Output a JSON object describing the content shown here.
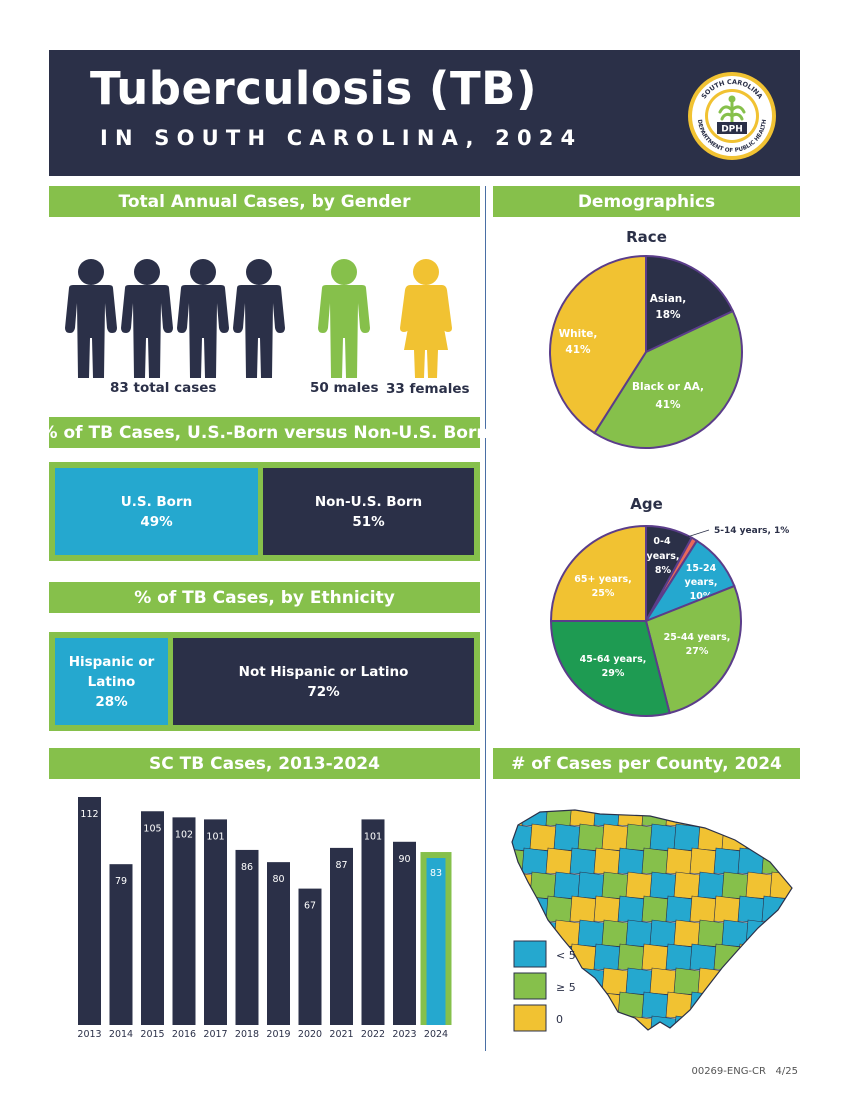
{
  "header": {
    "title": "Tuberculosis (TB)",
    "subtitle": "IN SOUTH CAROLINA, 2024",
    "seal_top_text": "SOUTH CAROLINA",
    "seal_bottom_text": "DEPARTMENT OF PUBLIC HEALTH",
    "seal_center_text": "DPH"
  },
  "colors": {
    "navy": "#2b3048",
    "green": "#86c04b",
    "yellow": "#f1c232",
    "blue": "#25a8cf",
    "teal_green": "#1e9b52",
    "salmon": "#e8685a"
  },
  "gender": {
    "heading": "Total Annual Cases, by Gender",
    "total_label": "83 total cases",
    "males_label": "50 males",
    "females_label": "33 females"
  },
  "birth": {
    "heading": "% of TB Cases, U.S.-Born versus Non-U.S. Born",
    "us_label": "U.S. Born",
    "us_value": "49%",
    "non_label": "Non-U.S. Born",
    "non_value": "51%"
  },
  "ethnicity": {
    "heading": "% of TB Cases, by Ethnicity",
    "hisp_label_1": "Hispanic or",
    "hisp_label_2": "Latino",
    "hisp_value": "28%",
    "non_label": "Not Hispanic or Latino",
    "non_value": "72%"
  },
  "demographics": {
    "heading": "Demographics",
    "race_heading": "Race",
    "age_heading": "Age"
  },
  "trend": {
    "heading": "SC TB Cases, 2013-2024"
  },
  "county": {
    "heading": "# of Cases per County, 2024",
    "legend": [
      "< 5",
      "≥ 5",
      "0"
    ]
  },
  "footer": {
    "code": "00269-ENG-CR",
    "date": "4/25"
  },
  "chart_data": [
    {
      "type": "bar",
      "title": "SC TB Cases, 2013-2024",
      "categories": [
        "2013",
        "2014",
        "2015",
        "2016",
        "2017",
        "2018",
        "2019",
        "2020",
        "2021",
        "2022",
        "2023",
        "2024"
      ],
      "values": [
        112,
        79,
        105,
        102,
        101,
        86,
        80,
        67,
        87,
        101,
        90,
        83
      ],
      "highlight": "2024"
    },
    {
      "type": "pie",
      "title": "Race",
      "slices": [
        {
          "label": "Asian,",
          "value": 18,
          "text": "18%",
          "color": "#2b3048"
        },
        {
          "label": "Black or AA,",
          "value": 41,
          "text": "41%",
          "color": "#86c04b"
        },
        {
          "label": "White,",
          "value": 41,
          "text": "41%",
          "color": "#f1c232"
        }
      ]
    },
    {
      "type": "pie",
      "title": "Age",
      "slices": [
        {
          "label": "0-4 years,",
          "value": 8,
          "text": "8%",
          "color": "#2b3048"
        },
        {
          "label": "5-14 years, 1%",
          "value": 1,
          "text": "",
          "color": "#e8685a"
        },
        {
          "label": "15-24 years,",
          "value": 10,
          "text": "10%",
          "color": "#25a8cf"
        },
        {
          "label": "25-44 years,",
          "value": 27,
          "text": "27%",
          "color": "#86c04b"
        },
        {
          "label": "45-64 years,",
          "value": 29,
          "text": "29%",
          "color": "#1e9b52"
        },
        {
          "label": "65+ years,",
          "value": 25,
          "text": "25%",
          "color": "#f1c232"
        }
      ]
    }
  ]
}
